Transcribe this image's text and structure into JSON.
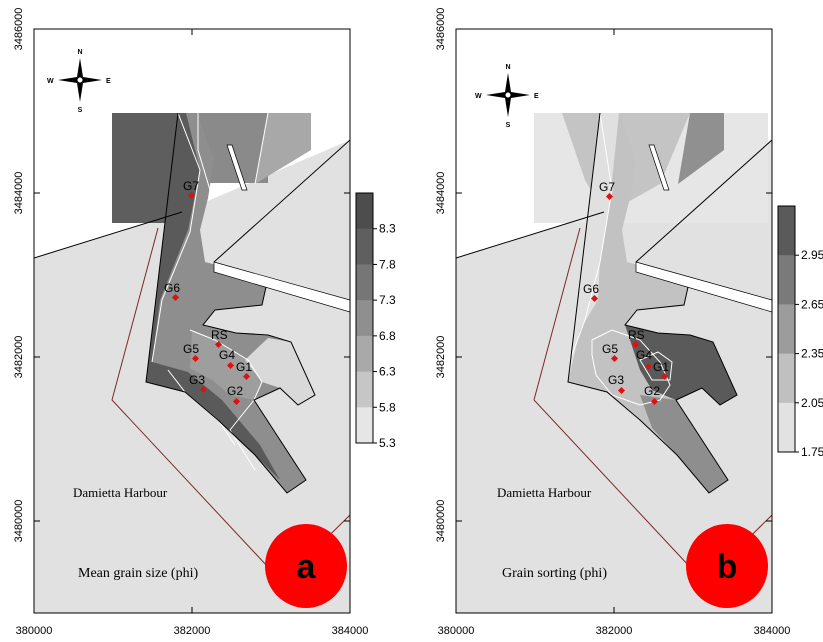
{
  "panels": [
    {
      "id": "a",
      "badge": "a",
      "harbour_label": "Damietta  Harbour",
      "caption": "Mean grain size (phi)",
      "colorbar_ticks": [
        "8.3",
        "7.8",
        "7.3",
        "6.8",
        "6.3",
        "5.8",
        "5.3"
      ],
      "colorbar_colors": [
        "#4d4d4d",
        "#5f5f5f",
        "#767676",
        "#8f8f8f",
        "#a9a9a9",
        "#c6c6c6",
        "#e6e6e6"
      ]
    },
    {
      "id": "b",
      "badge": "b",
      "harbour_label": "Damietta  Harbour",
      "caption": "Grain sorting (phi)",
      "colorbar_ticks": [
        "2.95",
        "2.65",
        "2.35",
        "2.05",
        "1.75"
      ],
      "colorbar_colors": [
        "#5a5a5a",
        "#7a7a7a",
        "#9c9c9c",
        "#c0c0c0",
        "#e2e2e2"
      ]
    }
  ],
  "x_ticks": [
    "380000",
    "382000",
    "384000"
  ],
  "y_ticks": [
    "3486000",
    "3484000",
    "3482000",
    "3480000"
  ],
  "compass": {
    "n": "N",
    "s": "S",
    "e": "E",
    "w": "W"
  },
  "stations": [
    "G7",
    "G6",
    "RS",
    "G5",
    "G4",
    "G1",
    "G3",
    "G2"
  ],
  "colors": {
    "sea": "#e1e1e1",
    "sample_marker": "#e01010",
    "badge_fill": "#ff0000",
    "boundary_line": "#7a2a2a"
  }
}
